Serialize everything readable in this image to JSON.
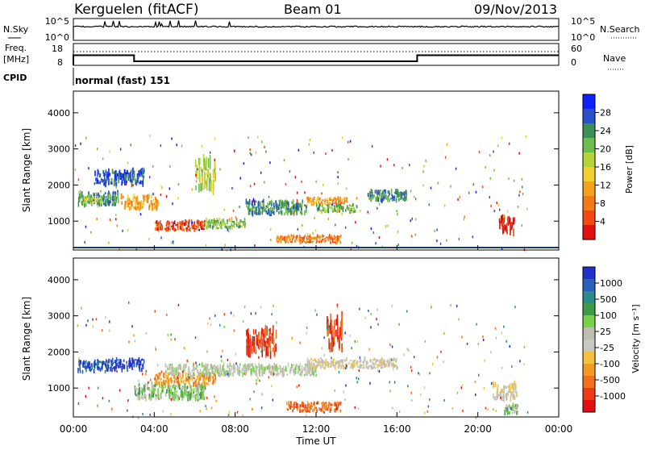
{
  "header": {
    "station": "Kerguelen (fitACF)",
    "beam": "Beam 01",
    "date": "09/Nov/2013"
  },
  "nsky_panel": {
    "left_label": "N.Sky",
    "left_ticks": [
      "10^5",
      "10^0"
    ],
    "right_label": "N.Search",
    "right_ticks": [
      "10^5",
      "10^0"
    ]
  },
  "freq_panel": {
    "left_label_line1": "Freq.",
    "left_label_line2": "[MHz]",
    "left_ticks": [
      "18",
      "8"
    ],
    "right_label": "Nave",
    "right_ticks": [
      "60",
      "0"
    ]
  },
  "cpid_panel": {
    "label": "CPID",
    "text": "normal (fast) 151"
  },
  "time_axis": {
    "title": "Time UT",
    "ticks": [
      "00:00",
      "04:00",
      "08:00",
      "12:00",
      "16:00",
      "20:00",
      "00:00"
    ],
    "range_hours": [
      0,
      24
    ]
  },
  "power_panel": {
    "ylabel": "Slant Range [km]",
    "yticks": [
      "4000",
      "3000",
      "2000",
      "1000"
    ],
    "colorbar_label": "Power [dB]",
    "colorbar_ticks": [
      "28",
      "24",
      "20",
      "16",
      "12",
      "8",
      "4"
    ],
    "colors": [
      "#1020ff",
      "#2a52c8",
      "#3d8f55",
      "#6dbd4e",
      "#b5d43a",
      "#f0d030",
      "#f5a020",
      "#f27a18",
      "#ee4a12",
      "#e01010"
    ]
  },
  "velocity_panel": {
    "ylabel": "Slant Range [km]",
    "yticks": [
      "4000",
      "3000",
      "2000",
      "1000"
    ],
    "colorbar_label": "Velocity [m s⁻¹]",
    "colorbar_ticks": [
      "1000",
      "500",
      "100",
      "25",
      "-25",
      "-100",
      "-500",
      "-1000"
    ],
    "colors": [
      "#2030c8",
      "#2a60b8",
      "#2f8a8a",
      "#3f9a46",
      "#7ad04a",
      "#bdbdb0",
      "#c8c8c0",
      "#f4c040",
      "#f29a28",
      "#f07020",
      "#ee3a15",
      "#e01010"
    ]
  },
  "chart_data": {
    "type": "heatmap",
    "x_unit": "hours UT",
    "y_unit": "km",
    "ylim": [
      200,
      4600
    ],
    "power_regions": [
      {
        "t": [
          0.2,
          2.2
        ],
        "r": [
          1450,
          1800
        ],
        "level": 2
      },
      {
        "t": [
          0.5,
          1.4
        ],
        "r": [
          1500,
          1700
        ],
        "level": 4
      },
      {
        "t": [
          2.3,
          4.2
        ],
        "r": [
          1350,
          1700
        ],
        "level": 6
      },
      {
        "t": [
          4.0,
          6.5
        ],
        "r": [
          750,
          1000
        ],
        "level": 8
      },
      {
        "t": [
          6.5,
          8.5
        ],
        "r": [
          800,
          1050
        ],
        "level": 3
      },
      {
        "t": [
          8.5,
          11.5
        ],
        "r": [
          1200,
          1550
        ],
        "level": 2
      },
      {
        "t": [
          11.5,
          13.5
        ],
        "r": [
          1450,
          1650
        ],
        "level": 6
      },
      {
        "t": [
          12.0,
          14.0
        ],
        "r": [
          1250,
          1450
        ],
        "level": 3
      },
      {
        "t": [
          10.0,
          13.2
        ],
        "r": [
          400,
          600
        ],
        "level": 7
      },
      {
        "t": [
          14.5,
          16.5
        ],
        "r": [
          1550,
          1850
        ],
        "level": 2
      },
      {
        "t": [
          21.0,
          21.8
        ],
        "r": [
          650,
          1100
        ],
        "level": 9
      },
      {
        "t": [
          6.0,
          7.0
        ],
        "r": [
          1900,
          2700
        ],
        "level": 4
      },
      {
        "t": [
          1.0,
          3.5
        ],
        "r": [
          2000,
          2400
        ],
        "level": 1
      }
    ],
    "velocity_regions": [
      {
        "t": [
          0.2,
          1.8
        ],
        "r": [
          1450,
          1750
        ],
        "level": 1
      },
      {
        "t": [
          1.8,
          3.5
        ],
        "r": [
          1500,
          1800
        ],
        "level": 0
      },
      {
        "t": [
          3.0,
          6.5
        ],
        "r": [
          700,
          1100
        ],
        "level": 4
      },
      {
        "t": [
          4.0,
          7.0
        ],
        "r": [
          1100,
          1400
        ],
        "level": 8
      },
      {
        "t": [
          4.5,
          12.0
        ],
        "r": [
          1350,
          1650
        ],
        "level": 5
      },
      {
        "t": [
          11.5,
          16.0
        ],
        "r": [
          1550,
          1800
        ],
        "level": 6
      },
      {
        "t": [
          10.5,
          13.2
        ],
        "r": [
          350,
          600
        ],
        "level": 9
      },
      {
        "t": [
          20.7,
          21.9
        ],
        "r": [
          700,
          1100
        ],
        "level": 6
      },
      {
        "t": [
          21.3,
          22.0
        ],
        "r": [
          300,
          550
        ],
        "level": 4
      },
      {
        "t": [
          8.5,
          10.0
        ],
        "r": [
          1900,
          2600
        ],
        "level": 10
      },
      {
        "t": [
          12.5,
          13.3
        ],
        "r": [
          2100,
          3000
        ],
        "level": 10
      }
    ],
    "frequency_trace": [
      {
        "t": 0.0,
        "f": 13
      },
      {
        "t": 3.0,
        "f": 10
      },
      {
        "t": 17.0,
        "f": 10
      },
      {
        "t": 17.0,
        "f": 13
      },
      {
        "t": 24.0,
        "f": 13
      }
    ]
  }
}
